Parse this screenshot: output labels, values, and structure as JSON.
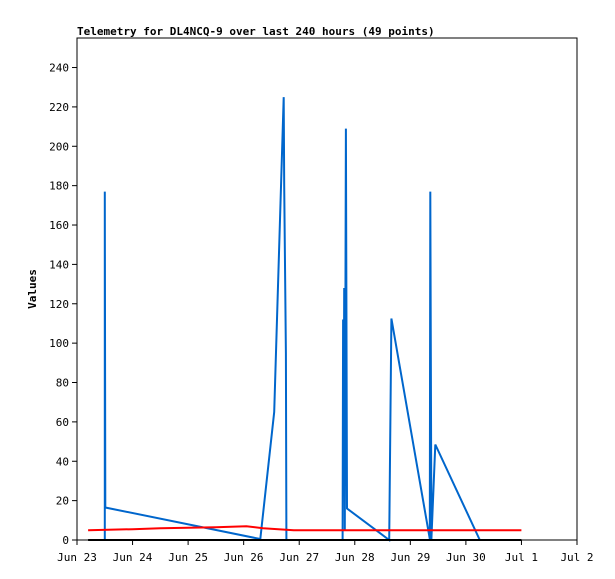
{
  "chart_data": {
    "type": "line",
    "title": "Telemetry for DL4NCQ-9 over last 240 hours (49 points)",
    "xlabel": "",
    "ylabel": "Values",
    "x_ticks": [
      "Jun 23",
      "Jun 24",
      "Jun 25",
      "Jun 26",
      "Jun 27",
      "Jun 28",
      "Jun 29",
      "Jun 30",
      "Jul 1",
      "Jul 2"
    ],
    "xlim": [
      0,
      9
    ],
    "ylim": [
      0,
      255
    ],
    "y_ticks": [
      0,
      20,
      40,
      60,
      80,
      100,
      120,
      140,
      160,
      180,
      200,
      220,
      240
    ],
    "grid": false,
    "legend": "none",
    "series": [
      {
        "color": "#0066cc",
        "points": [
          [
            0.5,
            0
          ],
          [
            0.5,
            177
          ],
          [
            0.51,
            16.5
          ],
          [
            3.3,
            0.5
          ],
          [
            3.55,
            65
          ],
          [
            3.72,
            225
          ],
          [
            3.73,
            180
          ],
          [
            3.76,
            95
          ],
          [
            3.77,
            0
          ],
          [
            4.78,
            0
          ],
          [
            4.79,
            112
          ],
          [
            4.8,
            45
          ],
          [
            4.81,
            128
          ],
          [
            4.82,
            5
          ],
          [
            4.84,
            209
          ],
          [
            4.86,
            16
          ],
          [
            5.62,
            0
          ],
          [
            5.66,
            112.5
          ],
          [
            6.35,
            0.5
          ],
          [
            6.36,
            177
          ],
          [
            6.38,
            0.5
          ],
          [
            6.45,
            48.5
          ],
          [
            7.25,
            0
          ]
        ]
      },
      {
        "color": "#ff0000",
        "points": [
          [
            0.2,
            5
          ],
          [
            1.0,
            5.5
          ],
          [
            1.5,
            6
          ],
          [
            2.5,
            6.5
          ],
          [
            3.05,
            7
          ],
          [
            3.35,
            6
          ],
          [
            3.9,
            5
          ],
          [
            8.0,
            5
          ]
        ]
      },
      {
        "color": "#000000",
        "points": [
          [
            0.2,
            0
          ],
          [
            8.0,
            0
          ]
        ]
      }
    ]
  }
}
